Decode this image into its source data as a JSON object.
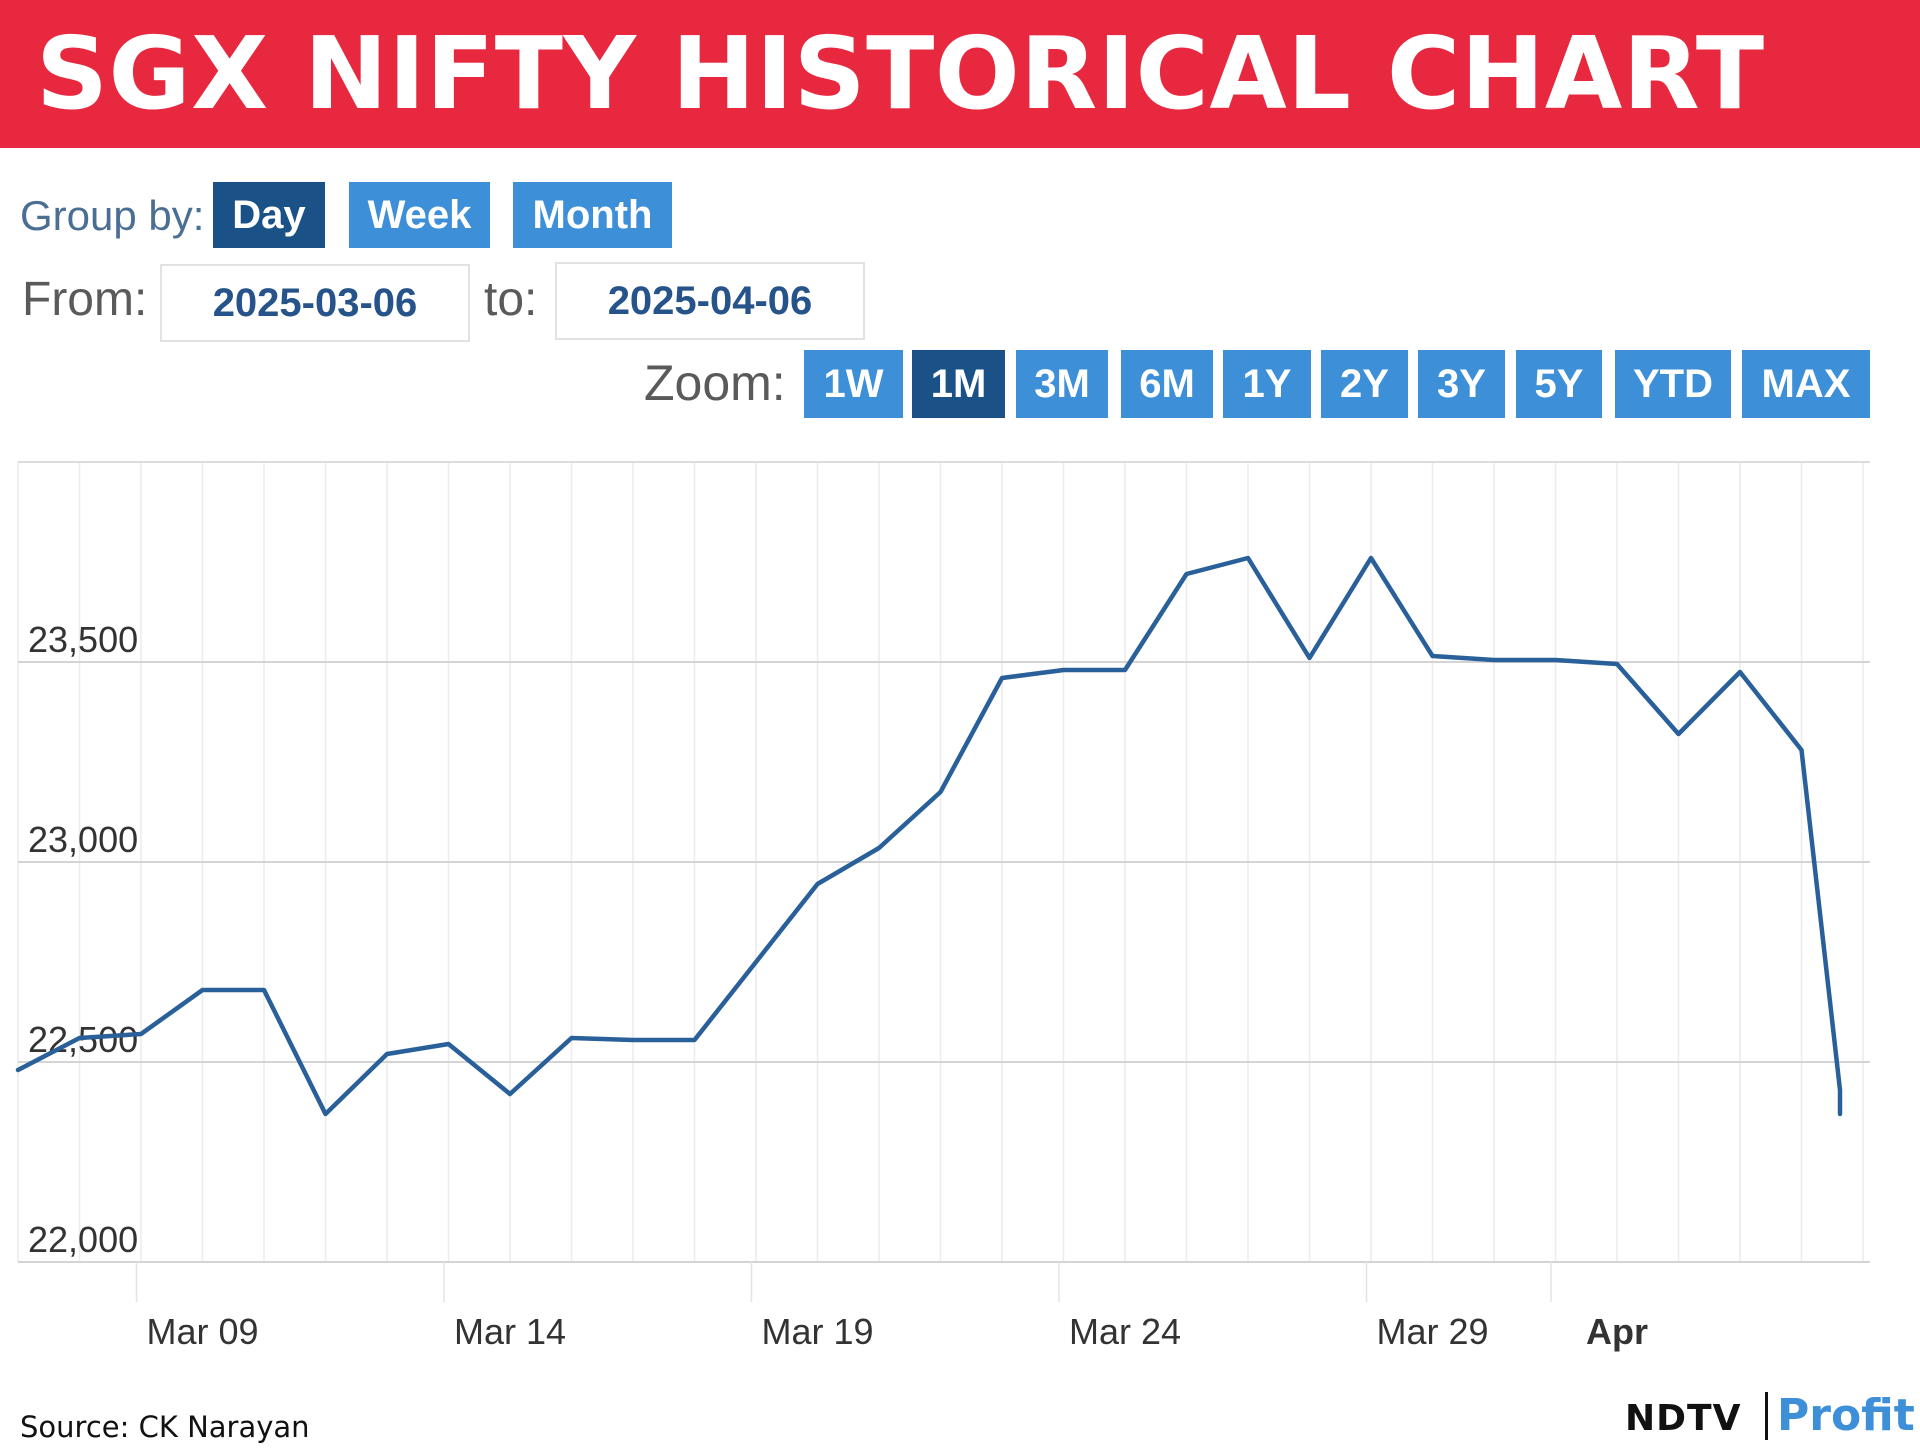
{
  "banner": {
    "title": "SGX NIFTY HISTORICAL CHART"
  },
  "controls": {
    "group_by_label": "Group by:",
    "group_buttons": [
      "Day",
      "Week",
      "Month"
    ],
    "group_active": "Day",
    "from_label": "From:",
    "from_value": "2025-03-06",
    "to_label": "to:",
    "to_value": "2025-04-06",
    "zoom_label": "Zoom:",
    "zoom_buttons": [
      "1W",
      "1M",
      "3M",
      "6M",
      "1Y",
      "2Y",
      "3Y",
      "5Y",
      "YTD",
      "MAX"
    ],
    "zoom_active": "1M"
  },
  "colors": {
    "banner": "#e8283f",
    "button": "#3d8fd8",
    "button_active": "#1a5187",
    "line": "#2a6099",
    "grid": "#dcdcdc"
  },
  "chart_data": {
    "type": "line",
    "title": "",
    "xlabel": "",
    "ylabel": "",
    "x": [
      "2025-03-06",
      "2025-03-07",
      "2025-03-08",
      "2025-03-09",
      "2025-03-10",
      "2025-03-11",
      "2025-03-12",
      "2025-03-13",
      "2025-03-14",
      "2025-03-15",
      "2025-03-16",
      "2025-03-17",
      "2025-03-18",
      "2025-03-19",
      "2025-03-20",
      "2025-03-21",
      "2025-03-22",
      "2025-03-23",
      "2025-03-24",
      "2025-03-25",
      "2025-03-26",
      "2025-03-27",
      "2025-03-28",
      "2025-03-29",
      "2025-03-30",
      "2025-03-31",
      "2025-04-01",
      "2025-04-02",
      "2025-04-03",
      "2025-04-04",
      "2025-04-05",
      "2025-04-06"
    ],
    "series": [
      {
        "values": [
          22480,
          22560,
          22570,
          22680,
          22680,
          22370,
          22520,
          22545,
          22420,
          22560,
          22555,
          22555,
          22750,
          22945,
          23035,
          23175,
          23460,
          23480,
          23480,
          23720,
          23760,
          23510,
          23760,
          23515,
          23505,
          23505,
          23495,
          23320,
          23475,
          23280,
          22430,
          22370
        ]
      }
    ],
    "x_ticks": [
      {
        "date": "2025-03-09",
        "label": "Mar 09"
      },
      {
        "date": "2025-03-14",
        "label": "Mar 14"
      },
      {
        "date": "2025-03-19",
        "label": "Mar 19"
      },
      {
        "date": "2025-03-24",
        "label": "Mar 24"
      },
      {
        "date": "2025-03-29",
        "label": "Mar 29"
      },
      {
        "date": "2025-04-01",
        "label": "Apr"
      }
    ],
    "y_ticks": [
      22000,
      22500,
      23000,
      23500
    ],
    "y_tick_labels": [
      "22,000",
      "22,500",
      "23,000",
      "23,500"
    ],
    "ylim": [
      22000,
      24000
    ],
    "grid": true,
    "legend": "none"
  },
  "footer": {
    "source": "Source: CK Narayan",
    "logo_left": "NDTV",
    "logo_right": "Profit"
  }
}
